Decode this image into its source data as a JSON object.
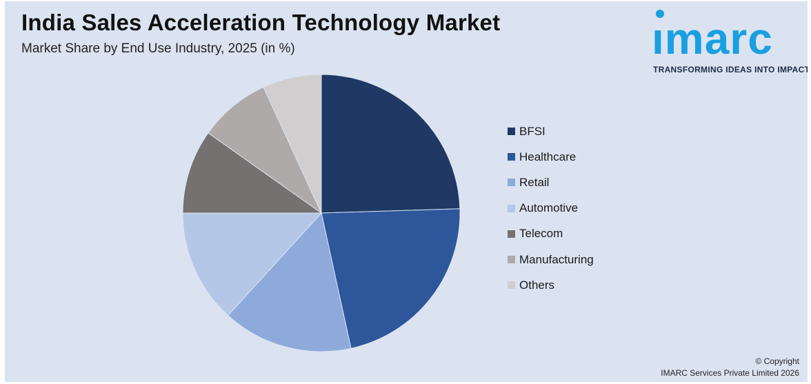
{
  "header": {
    "title": "India Sales Acceleration Technology Market",
    "subtitle": "Market Share by End Use Industry, 2025 (in %)"
  },
  "logo": {
    "word": "ımarc",
    "tagline": "TRANSFORMING IDEAS INTO IMPACT",
    "color": "#1a9fe0"
  },
  "chart_data": {
    "type": "pie",
    "title": "India Sales Acceleration Technology Market",
    "subtitle": "Market Share by End Use Industry, 2025 (in %)",
    "unit": "%",
    "legend_position": "right",
    "slices": [
      {
        "label": "BFSI",
        "value": 25,
        "color": "#1f3864"
      },
      {
        "label": "Healthcare",
        "value": 22.5,
        "color": "#2e569b"
      },
      {
        "label": "Retail",
        "value": 15.5,
        "color": "#8eaadb"
      },
      {
        "label": "Automotive",
        "value": 13.5,
        "color": "#b4c7e7"
      },
      {
        "label": "Telecom",
        "value": 10,
        "color": "#757171"
      },
      {
        "label": "Manufacturing",
        "value": 8.5,
        "color": "#aeaaaa"
      },
      {
        "label": "Others",
        "value": 7,
        "color": "#d0cece"
      }
    ]
  },
  "footer": {
    "copyright_line1": "© Copyright",
    "copyright_line2": "IMARC Services Private Limited 2026"
  }
}
